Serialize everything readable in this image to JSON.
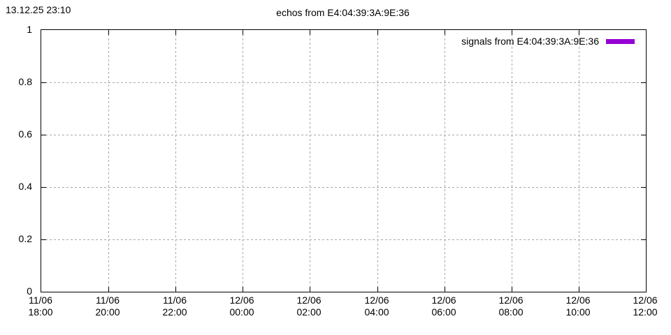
{
  "window": {
    "timestamp": "13.12.25 23:10"
  },
  "chart_data": {
    "type": "line",
    "title": "echos from E4:04:39:3A:9E:36",
    "xlabel": "",
    "ylabel": "",
    "ylim": [
      0,
      1
    ],
    "grid": true,
    "legend_position": "top-right",
    "legend": [
      {
        "label": "signals from E4:04:39:3A:9E:36",
        "color": "#9400d3"
      }
    ],
    "series": [
      {
        "name": "signals from E4:04:39:3A:9E:36",
        "color": "#9400d3",
        "points": []
      }
    ],
    "x_ticks": [
      {
        "date": "11/06",
        "time": "18:00"
      },
      {
        "date": "11/06",
        "time": "20:00"
      },
      {
        "date": "11/06",
        "time": "22:00"
      },
      {
        "date": "12/06",
        "time": "00:00"
      },
      {
        "date": "12/06",
        "time": "02:00"
      },
      {
        "date": "12/06",
        "time": "04:00"
      },
      {
        "date": "12/06",
        "time": "06:00"
      },
      {
        "date": "12/06",
        "time": "08:00"
      },
      {
        "date": "12/06",
        "time": "10:00"
      },
      {
        "date": "12/06",
        "time": "12:00"
      }
    ],
    "y_ticks": [
      "0",
      "0.2",
      "0.4",
      "0.6",
      "0.8",
      "1"
    ],
    "colors": {
      "border": "#000000",
      "grid": "#a8a8a8",
      "text": "#000000",
      "background": "#ffffff"
    }
  }
}
